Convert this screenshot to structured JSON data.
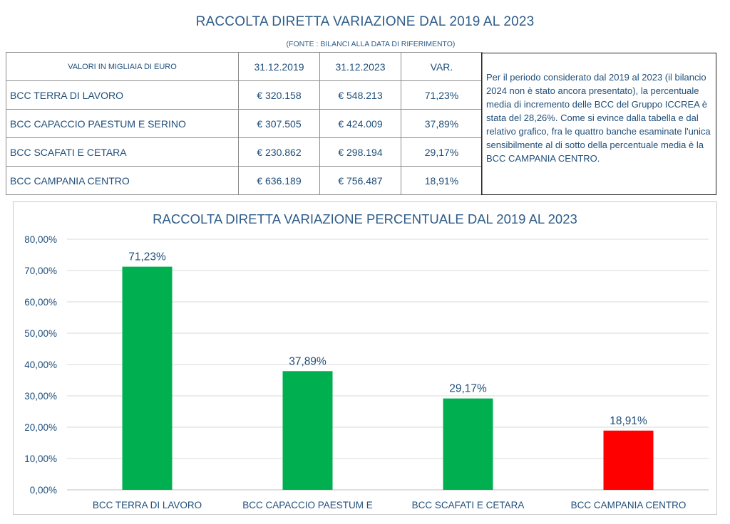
{
  "header": {
    "title": "RACCOLTA DIRETTA VARIAZIONE DAL 2019 AL 2023",
    "source": "(FONTE : BILANCI ALLA DATA DI RIFERIMENTO)"
  },
  "table": {
    "columns": [
      "VALORI IN MIGLIAIA DI EURO",
      "31.12.2019",
      "31.12.2023",
      "VAR."
    ],
    "rows": [
      {
        "name": "BCC TERRA DI LAVORO",
        "v2019": "€ 320.158",
        "v2023": "€ 548.213",
        "var": "71,23%"
      },
      {
        "name": "BCC CAPACCIO PAESTUM E SERINO",
        "v2019": "€ 307.505",
        "v2023": "€ 424.009",
        "var": "37,89%"
      },
      {
        "name": "BCC SCAFATI E CETARA",
        "v2019": "€ 230.862",
        "v2023": "€ 298.194",
        "var": "29,17%"
      },
      {
        "name": "BCC CAMPANIA CENTRO",
        "v2019": "€ 636.189",
        "v2023": "€ 756.487",
        "var": "18,91%"
      }
    ]
  },
  "note": "Per il periodo considerato dal 2019 al 2023 (il bilancio 2024 non è stato ancora presentato), la percentuale media di incremento delle BCC del Gruppo ICCREA è stata del 28,26%. Come si evince dalla tabella e dal relativo grafico, fra le quattro banche esaminate l'unica sensibilmente al di sotto della percentuale media è la BCC CAMPANIA CENTRO.",
  "chart_data": {
    "type": "bar",
    "title": "RACCOLTA DIRETTA VARIAZIONE PERCENTUALE DAL 2019 AL 2023",
    "categories": [
      "BCC TERRA DI LAVORO",
      "BCC CAPACCIO PAESTUM E",
      "BCC SCAFATI E CETARA",
      "BCC CAMPANIA CENTRO"
    ],
    "values": [
      71.23,
      37.89,
      29.17,
      18.91
    ],
    "data_labels": [
      "71,23%",
      "37,89%",
      "29,17%",
      "18,91%"
    ],
    "bar_colors": [
      "#00b050",
      "#00b050",
      "#00b050",
      "#ff0000"
    ],
    "ylim": [
      0,
      80
    ],
    "yticks": [
      0,
      10,
      20,
      30,
      40,
      50,
      60,
      70,
      80
    ],
    "ytick_labels": [
      "0,00%",
      "10,00%",
      "20,00%",
      "30,00%",
      "40,00%",
      "50,00%",
      "60,00%",
      "70,00%",
      "80,00%"
    ],
    "grid": true,
    "xlabel": "",
    "ylabel": ""
  },
  "colors": {
    "text": "#1f4e79",
    "green": "#00b050",
    "red": "#ff0000",
    "grid": "#d9d9d9"
  }
}
